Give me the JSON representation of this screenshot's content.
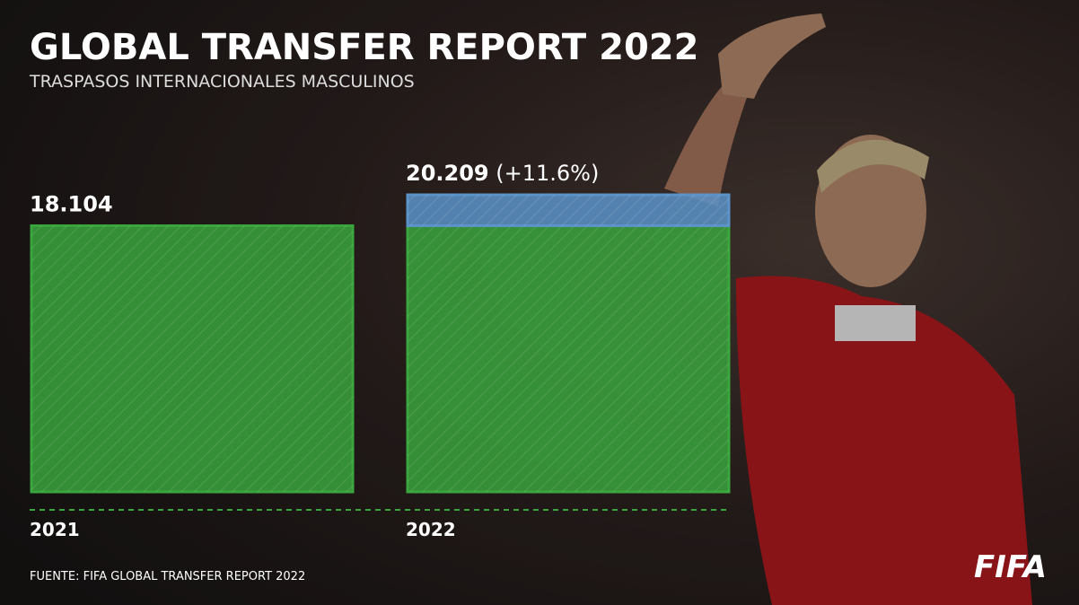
{
  "chart_data": {
    "type": "bar",
    "title": "GLOBAL TRANSFER REPORT 2022",
    "subtitle": "TRASPASOS INTERNACIONALES MASCULINOS",
    "categories": [
      "2021",
      "2022"
    ],
    "values": [
      18104,
      20209
    ],
    "value_labels": [
      "18.104",
      "20.209"
    ],
    "change_label": "(+11.6%)",
    "color": "#3aa53d",
    "increase_color": "#5b93c9",
    "source": "FUENTE: FIFA GLOBAL TRANSFER REPORT 2022",
    "logo": "FIFA"
  }
}
